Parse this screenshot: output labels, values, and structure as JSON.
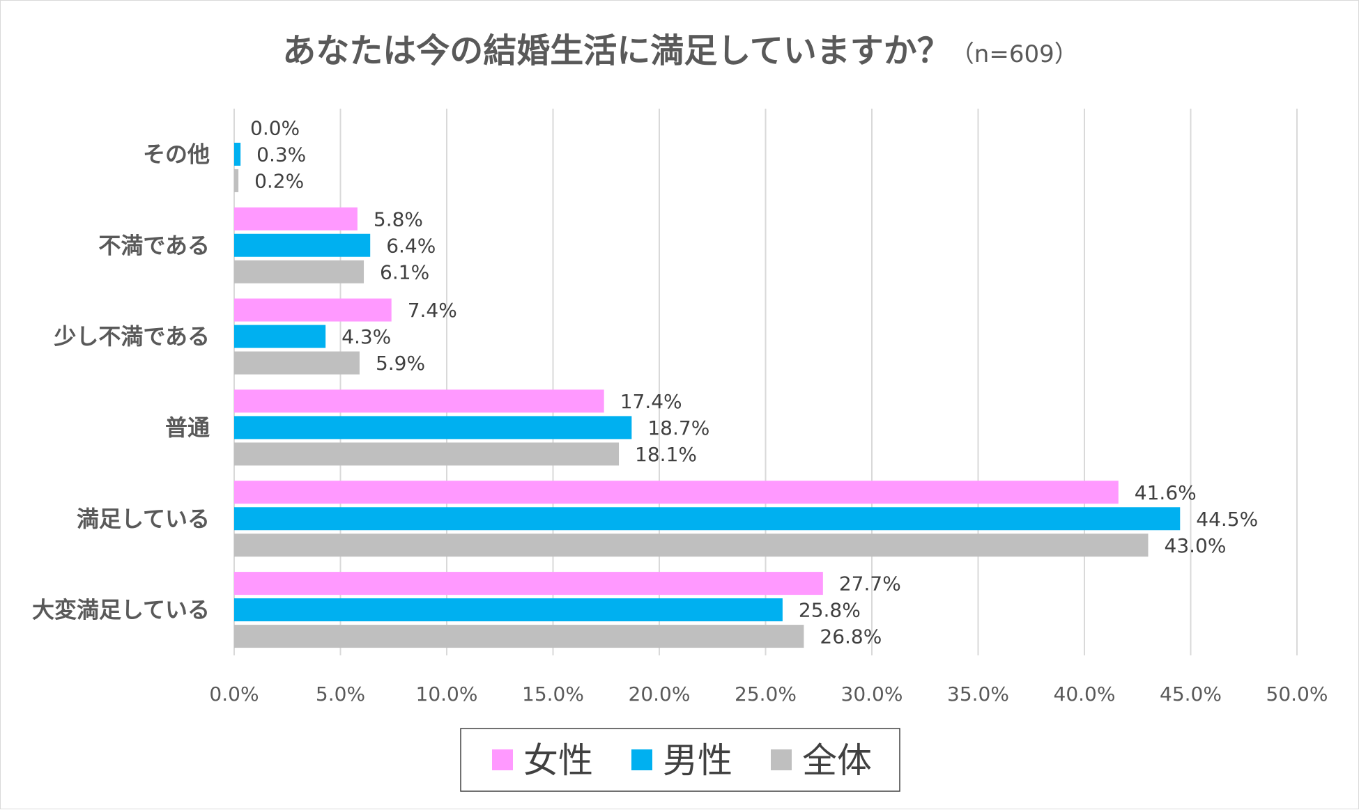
{
  "chart_data": {
    "type": "bar",
    "orientation": "horizontal",
    "title": "あなたは今の結婚生活に満足していますか？",
    "subtitle": "（n=609）",
    "categories": [
      "その他",
      "不満である",
      "少し不満である",
      "普通",
      "満足している",
      "大変満足している"
    ],
    "series": [
      {
        "name": "女性",
        "color": "#ff99ff",
        "values": [
          0.0,
          5.8,
          7.4,
          17.4,
          41.6,
          27.7
        ],
        "labels": [
          "0.0%",
          "5.8%",
          "7.4%",
          "17.4%",
          "41.6%",
          "27.7%"
        ]
      },
      {
        "name": "男性",
        "color": "#00b0f0",
        "values": [
          0.3,
          6.4,
          4.3,
          18.7,
          44.5,
          25.8
        ],
        "labels": [
          "0.3%",
          "6.4%",
          "4.3%",
          "18.7%",
          "44.5%",
          "25.8%"
        ]
      },
      {
        "name": "全体",
        "color": "#bfbfbf",
        "values": [
          0.2,
          6.1,
          5.9,
          18.1,
          43.0,
          26.8
        ],
        "labels": [
          "0.2%",
          "6.1%",
          "5.9%",
          "18.1%",
          "43.0%",
          "26.8%"
        ]
      }
    ],
    "xlim": [
      0,
      50
    ],
    "xticks": [
      0,
      5,
      10,
      15,
      20,
      25,
      30,
      35,
      40,
      45,
      50
    ],
    "xtick_labels": [
      "0.0%",
      "5.0%",
      "10.0%",
      "15.0%",
      "20.0%",
      "25.0%",
      "30.0%",
      "35.0%",
      "40.0%",
      "45.0%",
      "50.0%"
    ],
    "grid": true,
    "legend_position": "bottom"
  }
}
